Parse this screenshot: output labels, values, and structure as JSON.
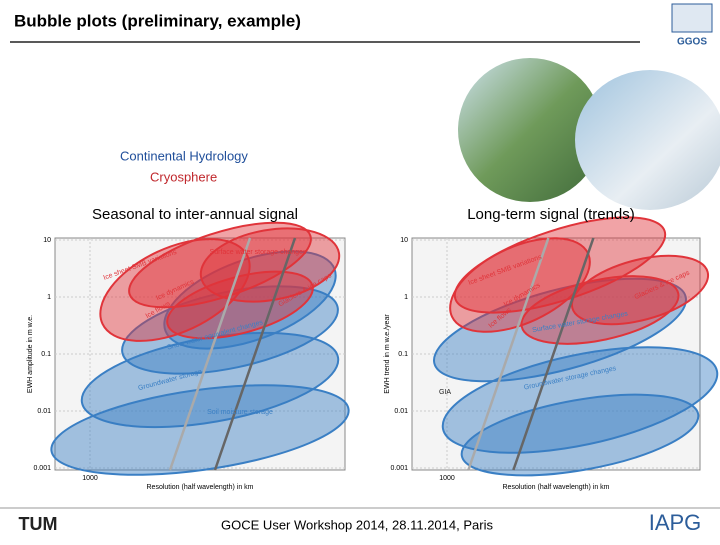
{
  "header": {
    "title": "Bubble plots (preliminary, example)",
    "logo": "GGOS"
  },
  "legend": {
    "hydrology": "Continental Hydrology",
    "cryosphere": "Cryosphere"
  },
  "panels": [
    {
      "title": "Seasonal to inter-annual signal",
      "y_axis_label": "EWH amplitude in m w.e.",
      "x_axis_label": "Resolution (half wavelength) in km",
      "yticks": [
        "10",
        "1",
        "0.1",
        "0.01",
        "0.001"
      ],
      "xticks": [
        "1000"
      ],
      "labels": [
        "Ice sheet SMB variations",
        "Surface water storage changes",
        "Ice dynamics",
        "Ice flows",
        "Glaciers & ice caps",
        "Snow water equivalent changes",
        "Groundwater storage",
        "Soil moisture storage"
      ]
    },
    {
      "title": "Long-term signal (trends)",
      "y_axis_label": "EWH trend in m w.e./year",
      "x_axis_label": "Resolution (half wavelength) in km",
      "yticks": [
        "10",
        "1",
        "0.1",
        "0.01",
        "0.001"
      ],
      "xticks": [
        "1000"
      ],
      "labels": [
        "Ice sheet SMB variations",
        "Ice dynamics",
        "Ice flows",
        "Glaciers & ice caps",
        "Surface water storage changes",
        "GIA",
        "Groundwater storage changes"
      ]
    }
  ],
  "footer": {
    "text": "GOCE User Workshop 2014, 28.11.2014, Paris",
    "left_logo": "TUM",
    "right_logo": "IAPG"
  }
}
